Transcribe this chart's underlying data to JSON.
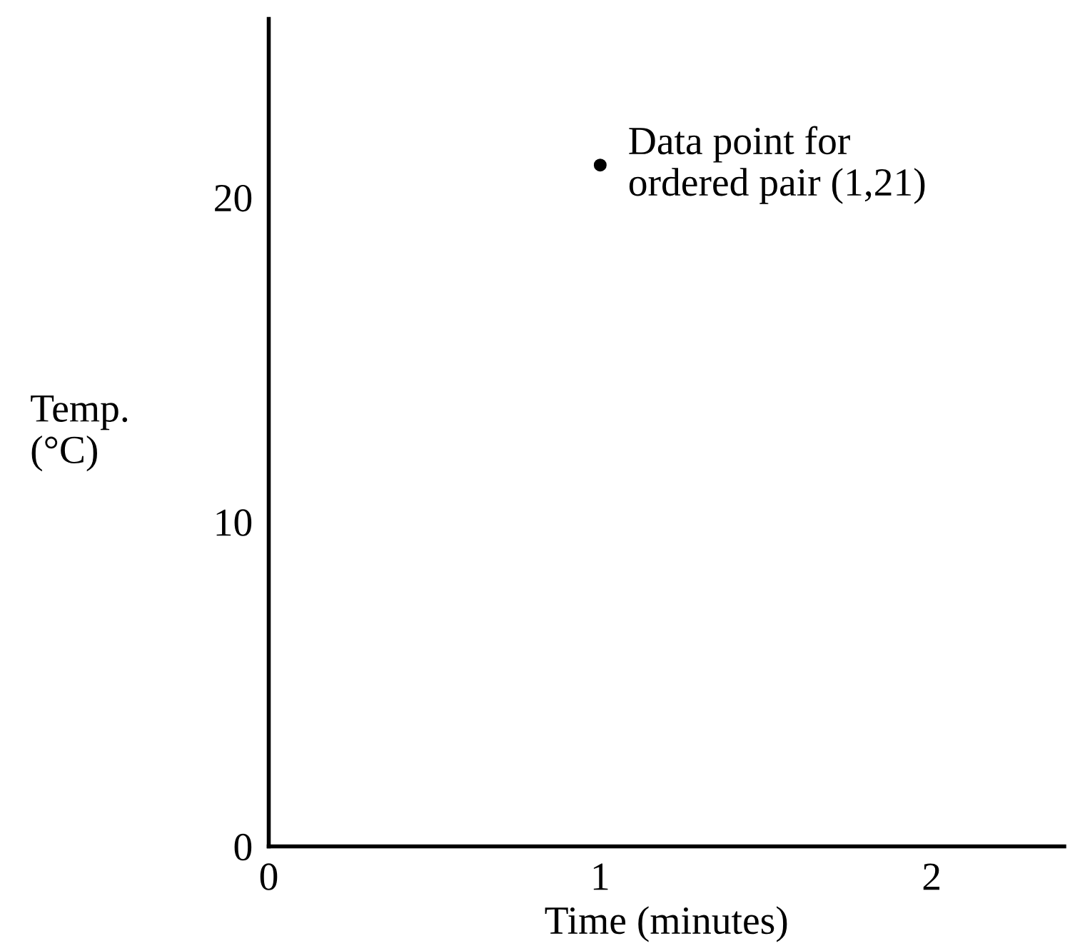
{
  "chart_data": {
    "type": "scatter",
    "x": [
      1
    ],
    "values": [
      21
    ],
    "color": "#000000",
    "marker": "circle",
    "xlabel": "Time (minutes)",
    "ylabel": "Temp.\n(°C)",
    "xlim": [
      0,
      2.4
    ],
    "ylim": [
      0,
      25.5
    ],
    "xticks": [
      0,
      1,
      2
    ],
    "yticks": [
      0,
      10,
      20
    ],
    "grid": false,
    "annotations": [
      {
        "text": "Data point for\nordered pair (1,21)",
        "x": 1,
        "y": 21
      }
    ]
  }
}
